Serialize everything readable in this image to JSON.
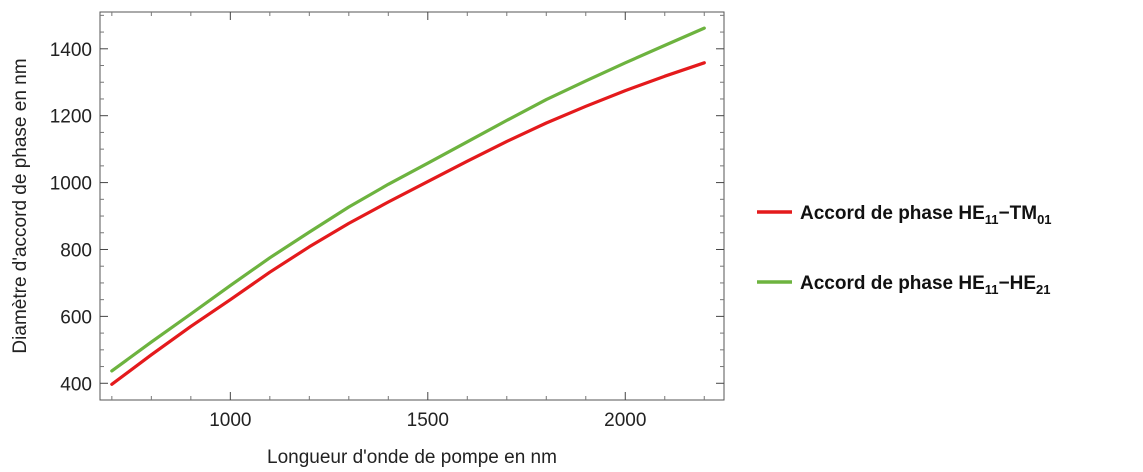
{
  "chart_data": {
    "type": "line",
    "title": "",
    "xlabel": "Longueur d'onde de pompe en nm",
    "ylabel": "Diamètre d'accord de phase en nm",
    "xlim": [
      670,
      2250
    ],
    "ylim": [
      350,
      1510
    ],
    "xticks": [
      1000,
      1500,
      2000
    ],
    "yticks": [
      400,
      600,
      800,
      1000,
      1200,
      1400
    ],
    "x_tick_labels": [
      "1000",
      "1500",
      "2000"
    ],
    "y_tick_labels": [
      "400",
      "600",
      "800",
      "1000",
      "1200",
      "1400"
    ],
    "grid": false,
    "legend_position": "right",
    "series": [
      {
        "name": "Accord de phase HE11−TM01",
        "legend_parts": [
          {
            "text": "Accord de phase HE",
            "sub": false
          },
          {
            "text": "11",
            "sub": true
          },
          {
            "text": "−TM",
            "sub": false
          },
          {
            "text": "01",
            "sub": true
          }
        ],
        "color": "#e41a1c",
        "x": [
          700,
          800,
          900,
          1000,
          1100,
          1200,
          1300,
          1400,
          1500,
          1600,
          1700,
          1800,
          1900,
          2000,
          2100,
          2200
        ],
        "y": [
          397,
          485,
          570,
          650,
          732,
          808,
          878,
          942,
          1003,
          1064,
          1123,
          1178,
          1228,
          1275,
          1318,
          1358
        ]
      },
      {
        "name": "Accord de phase HE11−HE21",
        "legend_parts": [
          {
            "text": "Accord de phase HE",
            "sub": false
          },
          {
            "text": "11",
            "sub": true
          },
          {
            "text": "−HE",
            "sub": false
          },
          {
            "text": "21",
            "sub": true
          }
        ],
        "color": "#6db33f",
        "x": [
          700,
          800,
          900,
          1000,
          1100,
          1200,
          1300,
          1400,
          1500,
          1600,
          1700,
          1800,
          1900,
          2000,
          2100,
          2200
        ],
        "y": [
          437,
          523,
          607,
          692,
          775,
          852,
          927,
          995,
          1058,
          1122,
          1186,
          1248,
          1304,
          1358,
          1410,
          1462
        ]
      }
    ]
  }
}
